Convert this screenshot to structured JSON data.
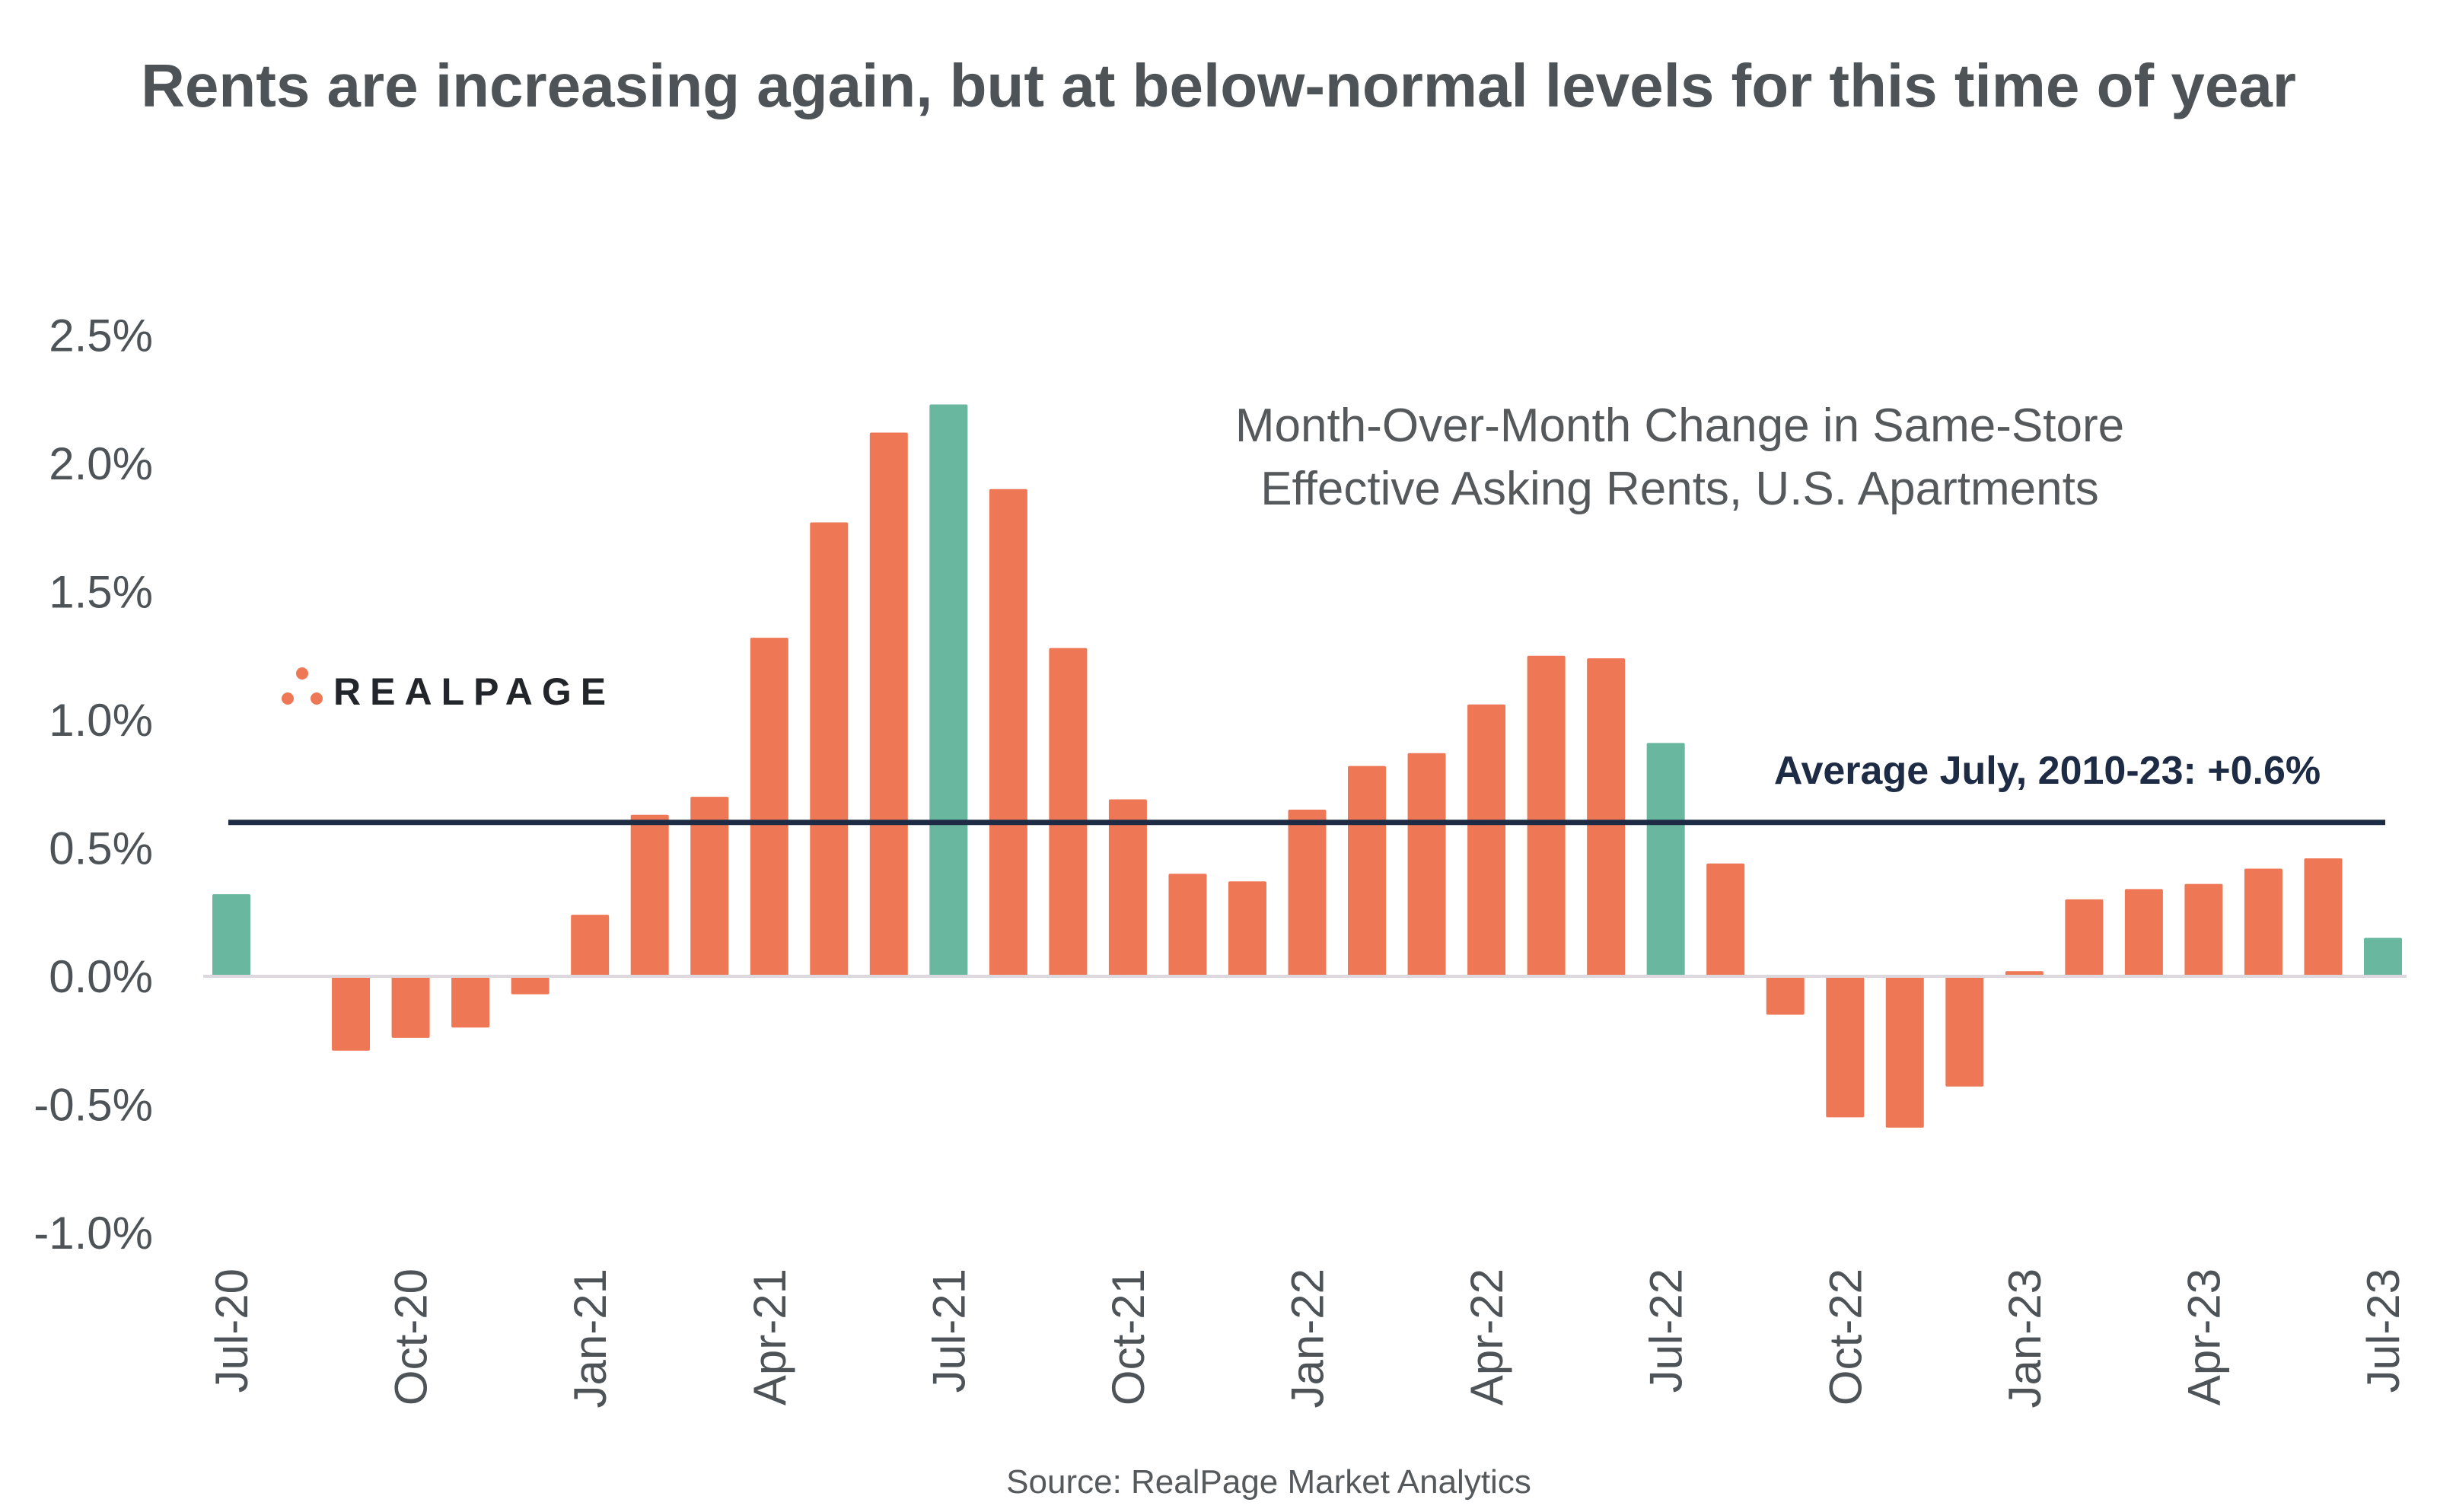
{
  "chart_data": {
    "type": "bar",
    "title": "Rents are increasing again, but at below-normal levels for this time of year",
    "subtitle": [
      "Month-Over-Month Change in Same-Store",
      "Effective Asking Rents, U.S. Apartments"
    ],
    "source": "Source: RealPage Market Analytics",
    "logo": "REALPAGE",
    "categories": [
      "Jul-20",
      "Aug-20",
      "Sep-20",
      "Oct-20",
      "Nov-20",
      "Dec-20",
      "Jan-21",
      "Feb-21",
      "Mar-21",
      "Apr-21",
      "May-21",
      "Jun-21",
      "Jul-21",
      "Aug-21",
      "Sep-21",
      "Oct-21",
      "Nov-21",
      "Dec-21",
      "Jan-22",
      "Feb-22",
      "Mar-22",
      "Apr-22",
      "May-22",
      "Jun-22",
      "Jul-22",
      "Aug-22",
      "Sep-22",
      "Oct-22",
      "Nov-22",
      "Dec-22",
      "Jan-23",
      "Feb-23",
      "Mar-23",
      "Apr-23",
      "May-23",
      "Jun-23",
      "Jul-23"
    ],
    "values": [
      0.32,
      0.0,
      -0.29,
      -0.24,
      -0.2,
      -0.07,
      0.24,
      0.63,
      0.7,
      1.32,
      1.77,
      2.12,
      2.23,
      1.9,
      1.28,
      0.69,
      0.4,
      0.37,
      0.65,
      0.82,
      0.87,
      1.06,
      1.25,
      1.24,
      0.91,
      0.44,
      -0.15,
      -0.55,
      -0.59,
      -0.43,
      0.02,
      0.3,
      0.34,
      0.36,
      0.42,
      0.46,
      0.15
    ],
    "highlight_months": [
      "Jul-20",
      "Jul-21",
      "Jul-22",
      "Jul-23"
    ],
    "xtick_labels": [
      "Jul-20",
      "Oct-20",
      "Jan-21",
      "Apr-21",
      "Jul-21",
      "Oct-21",
      "Jan-22",
      "Apr-22",
      "Jul-22",
      "Oct-22",
      "Jan-23",
      "Apr-23",
      "Jul-23"
    ],
    "ytick_labels": [
      "2.5%",
      "2.0%",
      "1.5%",
      "1.0%",
      "0.5%",
      "0.0%",
      "-0.5%",
      "-1.0%"
    ],
    "yticks": [
      2.5,
      2.0,
      1.5,
      1.0,
      0.5,
      0.0,
      -0.5,
      -1.0
    ],
    "ylim": [
      -1.0,
      2.5
    ],
    "xlabel": "",
    "ylabel": "",
    "grid": false,
    "reference_line": {
      "value": 0.6,
      "label": "Average July, 2010-23: +0.6%"
    },
    "colors": {
      "bar": "#ee7855",
      "highlight": "#69b79e",
      "reference_line": "#1d2b44",
      "zero_line": "#ddd8de",
      "logo_dots": "#ee7855"
    }
  }
}
